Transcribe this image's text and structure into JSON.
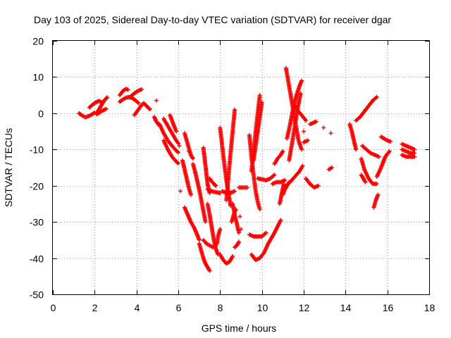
{
  "chart_data": {
    "type": "scatter",
    "title": "Day 103 of 2025, Sidereal Day-to-day VTEC variation (SDTVAR) for receiver dgar",
    "xlabel": "GPS time / hours",
    "ylabel": "SDTVAR / TECUs",
    "xlim": [
      0,
      18
    ],
    "ylim": [
      -50,
      20
    ],
    "xticks": [
      0,
      2,
      4,
      6,
      8,
      10,
      12,
      14,
      16,
      18
    ],
    "yticks": [
      -50,
      -40,
      -30,
      -20,
      -10,
      0,
      10,
      20
    ],
    "grid": true,
    "legend": "none",
    "marker": "+",
    "color": "#ff0000",
    "series": [
      {
        "x": [
          1.25,
          1.4,
          1.55,
          1.7,
          1.85,
          2.0
        ],
        "y": [
          0,
          -0.6,
          -1.1,
          -0.8,
          -0.4,
          0.2
        ]
      },
      {
        "x": [
          1.75,
          1.9,
          2.05,
          2.2,
          2.35
        ],
        "y": [
          1.6,
          2.4,
          3.0,
          3.4,
          3.0
        ]
      },
      {
        "x": [
          2.1,
          2.2,
          2.3,
          2.4,
          2.5,
          2.6
        ],
        "y": [
          0.0,
          1.0,
          2.0,
          3.0,
          3.8,
          4.4
        ]
      },
      {
        "x": [
          2.1,
          2.25,
          2.4,
          2.55
        ],
        "y": [
          -0.3,
          0.3,
          0.8,
          1.2
        ]
      },
      {
        "x": [
          3.2,
          3.3,
          3.4,
          3.5,
          3.6
        ],
        "y": [
          5.0,
          5.8,
          6.4,
          6.7,
          6.5
        ]
      },
      {
        "x": [
          3.2,
          3.35,
          3.5,
          3.65,
          3.8,
          3.95,
          4.1
        ],
        "y": [
          3.2,
          3.8,
          4.3,
          4.5,
          4.2,
          3.6,
          2.8
        ]
      },
      {
        "x": [
          3.7,
          3.85,
          4.0,
          4.15,
          4.25
        ],
        "y": [
          4.5,
          5.3,
          5.9,
          6.4,
          6.6
        ]
      },
      {
        "x": [
          3.9,
          4.0,
          4.1,
          4.2,
          4.3
        ],
        "y": [
          -0.5,
          0.3,
          1.1,
          1.9,
          2.6
        ]
      },
      {
        "x": [
          4.35,
          4.45,
          4.55,
          4.65
        ],
        "y": [
          2.8,
          2.2,
          1.6,
          1.1
        ]
      },
      {
        "x": [
          4.95
        ],
        "y": [
          3.5
        ]
      },
      {
        "x": [
          4.85,
          4.95,
          5.05,
          5.15
        ],
        "y": [
          -1.0,
          -2.3,
          -3.1,
          -3.6
        ]
      },
      {
        "x": [
          5.1,
          5.3,
          5.5,
          5.7,
          5.9,
          6.0
        ],
        "y": [
          -3.0,
          -5.5,
          -7.5,
          -9.0,
          -10.3,
          -10.8
        ]
      },
      {
        "x": [
          5.3,
          5.5,
          5.7,
          5.9,
          6.0
        ],
        "y": [
          -7.5,
          -10.0,
          -12.0,
          -13.3,
          -13.8
        ]
      },
      {
        "x": [
          5.6,
          5.7,
          5.8,
          5.9
        ],
        "y": [
          -0.5,
          -2.0,
          -3.5,
          -5.0
        ]
      },
      {
        "x": [
          5.3,
          5.45,
          5.6,
          5.75,
          5.9,
          6.0
        ],
        "y": [
          -1.5,
          -3.0,
          -4.5,
          -6.0,
          -7.5,
          -8.3
        ]
      },
      {
        "x": [
          6.05
        ],
        "y": [
          -9.0
        ]
      },
      {
        "x": [
          6.1
        ],
        "y": [
          -21.5
        ]
      },
      {
        "x": [
          6.2,
          6.3,
          6.4,
          6.5,
          6.6
        ],
        "y": [
          -13.0,
          -15.5,
          -18.0,
          -20.5,
          -22.5
        ]
      },
      {
        "x": [
          6.3,
          6.4,
          6.5,
          6.6,
          6.7
        ],
        "y": [
          -5.5,
          -7.5,
          -9.5,
          -11.5,
          -12.5
        ]
      },
      {
        "x": [
          6.5
        ],
        "y": [
          -10.5
        ]
      },
      {
        "x": [
          6.3,
          6.45,
          6.6,
          6.75,
          6.9,
          7.0
        ],
        "y": [
          -26.0,
          -28.0,
          -30.0,
          -31.5,
          -33.5,
          -35.0
        ]
      },
      {
        "x": [
          6.7,
          6.8,
          6.9,
          7.0,
          7.1,
          7.2,
          7.3
        ],
        "y": [
          -14.0,
          -16.0,
          -18.5,
          -21.0,
          -24.0,
          -27.0,
          -30.0
        ]
      },
      {
        "x": [
          7.0,
          7.1,
          7.2,
          7.3,
          7.4,
          7.5
        ],
        "y": [
          -36.0,
          -38.0,
          -40.0,
          -41.5,
          -42.5,
          -43.5
        ]
      },
      {
        "x": [
          7.2,
          7.25,
          7.3,
          7.35,
          7.4,
          7.5
        ],
        "y": [
          -9.5,
          -12.0,
          -14.5,
          -17.0,
          -19.5,
          -22.0
        ]
      },
      {
        "x": [
          7.4,
          7.5,
          7.6,
          7.7,
          7.8,
          7.9
        ],
        "y": [
          -25.0,
          -28.0,
          -31.5,
          -35.0,
          -37.5,
          -39.0
        ]
      },
      {
        "x": [
          7.2,
          7.35,
          7.5,
          7.65,
          7.8
        ],
        "y": [
          -35.0,
          -36.0,
          -36.5,
          -37.0,
          -36.5
        ]
      },
      {
        "x": [
          7.5,
          7.6,
          7.7,
          7.8
        ],
        "y": [
          -18.0,
          -18.8,
          -19.5,
          -20.0
        ]
      },
      {
        "x": [
          7.4,
          7.6,
          7.8,
          8.0
        ],
        "y": [
          -21.0,
          -21.5,
          -21.8,
          -22.0
        ]
      },
      {
        "x": [
          7.85,
          7.9,
          7.95,
          8.0
        ],
        "y": [
          -36.0,
          -34.0,
          -33.0,
          -32.0
        ]
      },
      {
        "x": [
          8.0,
          8.1,
          8.2,
          8.3,
          8.4,
          8.5
        ],
        "y": [
          -4.0,
          -9.0,
          -14.0,
          -18.5,
          -22.0,
          -25.5
        ]
      },
      {
        "x": [
          8.0,
          8.15,
          8.3,
          8.45,
          8.6
        ],
        "y": [
          -39.0,
          -40.5,
          -41.5,
          -41.0,
          -39.5
        ]
      },
      {
        "x": [
          8.1,
          8.3,
          8.5,
          8.7
        ],
        "y": [
          -21.5,
          -22.0,
          -22.0,
          -21.5
        ]
      },
      {
        "x": [
          8.3,
          8.4,
          8.5,
          8.6,
          8.7
        ],
        "y": [
          -24.0,
          -17.5,
          -11.0,
          -5.0,
          1.0
        ]
      },
      {
        "x": [
          8.6,
          8.7,
          8.8,
          8.9
        ],
        "y": [
          -25.0,
          -28.0,
          -30.5,
          -33.0
        ]
      },
      {
        "x": [
          8.7,
          8.8,
          8.9
        ],
        "y": [
          -37.0,
          -36.5,
          -35.5
        ]
      },
      {
        "x": [
          8.55,
          8.65,
          8.75
        ],
        "y": [
          -30.0,
          -28.0,
          -26.5
        ]
      },
      {
        "x": [
          8.95
        ],
        "y": [
          -28.5
        ]
      },
      {
        "x": [
          9.0
        ],
        "y": [
          -32.0
        ]
      },
      {
        "x": [
          8.9,
          9.3
        ],
        "y": [
          -20.5,
          -20.5
        ]
      },
      {
        "x": [
          9.4,
          9.5,
          9.6,
          9.7,
          9.8,
          9.9
        ],
        "y": [
          -6.0,
          -12.0,
          -17.0,
          -21.5,
          -24.5,
          -26.5
        ]
      },
      {
        "x": [
          9.4,
          9.6,
          9.8,
          10.0,
          10.2
        ],
        "y": [
          -33.5,
          -34.0,
          -34.0,
          -34.0,
          -33.0
        ]
      },
      {
        "x": [
          9.5,
          9.7,
          9.9,
          10.1,
          10.3,
          10.6,
          10.9
        ],
        "y": [
          -39.0,
          -40.5,
          -40.0,
          -38.5,
          -36.0,
          -33.0,
          -29.5
        ]
      },
      {
        "x": [
          9.5,
          9.6,
          9.7,
          9.8,
          9.9
        ],
        "y": [
          -16.0,
          -11.0,
          -5.0,
          0.0,
          5.0
        ]
      },
      {
        "x": [
          9.6,
          9.7,
          9.8,
          9.9,
          10.0
        ],
        "y": [
          -13.0,
          -9.0,
          -5.0,
          -1.0,
          3.0
        ]
      },
      {
        "x": [
          9.8,
          10.0,
          10.2,
          10.4,
          10.6
        ],
        "y": [
          -18.0,
          -18.2,
          -18.5,
          -18.0,
          -17.0
        ]
      },
      {
        "x": [
          10.5,
          10.7,
          10.9,
          11.1
        ],
        "y": [
          -19.5,
          -19.0,
          -19.0,
          -18.5
        ]
      },
      {
        "x": [
          10.85,
          10.95,
          11.05
        ],
        "y": [
          -25.0,
          -22.0,
          -19.5
        ]
      },
      {
        "x": [
          10.6,
          10.75,
          10.9,
          11.0
        ],
        "y": [
          -14.0,
          -12.5,
          -11.5,
          -10.5
        ]
      },
      {
        "x": [
          11.15,
          11.3,
          11.45,
          11.6,
          11.75,
          11.9
        ],
        "y": [
          12.5,
          7.5,
          2.5,
          -2.5,
          -7.5,
          -10.0
        ]
      },
      {
        "x": [
          11.2,
          11.35,
          11.5,
          11.65,
          11.8,
          11.9
        ],
        "y": [
          -7.0,
          -3.0,
          1.5,
          5.0,
          7.5,
          9.0
        ]
      },
      {
        "x": [
          11.3,
          11.45,
          11.6,
          11.75,
          11.85
        ],
        "y": [
          -13.0,
          -8.0,
          -2.5,
          2.5,
          5.5
        ]
      },
      {
        "x": [
          11.6,
          11.75,
          11.9,
          12.1
        ],
        "y": [
          2.0,
          0.5,
          -0.5,
          -2.0
        ]
      },
      {
        "x": [
          11.35,
          11.5,
          11.65,
          11.8,
          11.95
        ],
        "y": [
          -19.0,
          -18.0,
          -17.0,
          -16.0,
          -14.5
        ]
      },
      {
        "x": [
          11.0,
          11.1,
          11.2,
          11.3
        ],
        "y": [
          -22.5,
          -21.0,
          -20.0,
          -19.0
        ]
      },
      {
        "x": [
          12.3,
          12.4,
          12.5,
          12.6
        ],
        "y": [
          -3.0,
          -2.8,
          -2.5,
          -2.3
        ]
      },
      {
        "x": [
          12.1,
          12.3,
          12.5,
          12.7
        ],
        "y": [
          -18.0,
          -19.5,
          -20.5,
          -20.0
        ]
      },
      {
        "x": [
          12.0,
          12.2
        ],
        "y": [
          -8.0,
          -7.5
        ]
      },
      {
        "x": [
          12.0
        ],
        "y": [
          -5.0
        ]
      },
      {
        "x": [
          12.95
        ],
        "y": [
          -4.0
        ]
      },
      {
        "x": [
          13.3
        ],
        "y": [
          -5.5
        ]
      },
      {
        "x": [
          13.2,
          13.35
        ],
        "y": [
          -15.5,
          -15.0
        ]
      },
      {
        "x": [
          14.2,
          14.3,
          14.4,
          14.5
        ],
        "y": [
          -3.0,
          -5.0,
          -7.5,
          -10.0
        ]
      },
      {
        "x": [
          14.5,
          14.7,
          14.9,
          15.1,
          15.3,
          15.5
        ],
        "y": [
          -2.0,
          -1.0,
          0.5,
          2.0,
          3.5,
          4.5
        ]
      },
      {
        "x": [
          14.8,
          15.0,
          15.2,
          15.4,
          15.6
        ],
        "y": [
          -9.0,
          -10.0,
          -11.0,
          -11.5,
          -12.0
        ]
      },
      {
        "x": [
          14.75,
          14.9,
          15.1,
          15.3,
          15.5
        ],
        "y": [
          -12.5,
          -15.5,
          -18.0,
          -19.5,
          -19.5
        ]
      },
      {
        "x": [
          14.75,
          14.85,
          14.95
        ],
        "y": [
          -17.0,
          -18.0,
          -19.0
        ]
      },
      {
        "x": [
          15.35,
          15.45,
          15.55
        ],
        "y": [
          -26.0,
          -24.0,
          -22.5
        ]
      },
      {
        "x": [
          15.5,
          15.7,
          15.9,
          16.1
        ],
        "y": [
          -17.5,
          -15.0,
          -12.0,
          -10.5
        ]
      },
      {
        "x": [
          15.7,
          15.85,
          16.0,
          16.15
        ],
        "y": [
          -6.5,
          -7.0,
          -7.5,
          -7.8
        ]
      },
      {
        "x": [
          16.7,
          16.9,
          17.1,
          17.3
        ],
        "y": [
          -8.5,
          -9.0,
          -9.5,
          -10.0
        ]
      },
      {
        "x": [
          16.7,
          16.9,
          17.1,
          17.3
        ],
        "y": [
          -10.0,
          -10.5,
          -11.0,
          -11.0
        ]
      },
      {
        "x": [
          16.7,
          16.9,
          17.1,
          17.3
        ],
        "y": [
          -11.5,
          -12.0,
          -12.0,
          -12.0
        ]
      }
    ]
  }
}
